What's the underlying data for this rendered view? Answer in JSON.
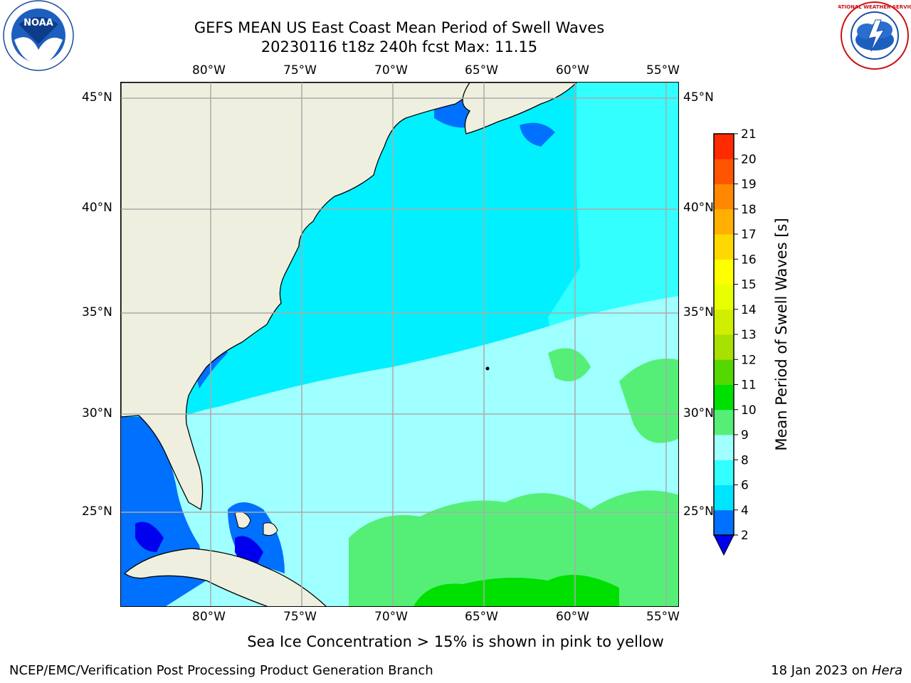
{
  "header": {
    "title_line1": "GEFS MEAN US East Coast Mean Period of Swell Waves",
    "title_line2": "20230116 t18z 240h fcst   Max: 11.15"
  },
  "map": {
    "lon_labels": [
      "80°W",
      "75°W",
      "70°W",
      "65°W",
      "60°W",
      "55°W"
    ],
    "lat_labels": [
      "45°N",
      "40°N",
      "35°N",
      "30°N",
      "25°N"
    ]
  },
  "colorbar": {
    "label": "Mean Period of Swell Waves [s]",
    "ticks": [
      "2",
      "4",
      "6",
      "8",
      "9",
      "10",
      "11",
      "12",
      "13",
      "14",
      "15",
      "16",
      "17",
      "18",
      "19",
      "20",
      "21"
    ],
    "colors": [
      "#0070ff",
      "#00e5ff",
      "#33ffff",
      "#a0ffff",
      "#55ef77",
      "#00e000",
      "#55d800",
      "#a8e000",
      "#d0ee00",
      "#e8ff00",
      "#ffff00",
      "#ffd800",
      "#ffb000",
      "#ff8800",
      "#ff5500",
      "#ff2a00",
      "#ff0000"
    ],
    "under_color": "#0000ee"
  },
  "notes": {
    "ice": "Sea Ice Concentration > 15% is shown in pink to yellow"
  },
  "footer": {
    "left": "NCEP/EMC/Verification Post Processing Product Generation Branch",
    "right_date": "18 Jan 2023 on",
    "right_host": "Hera"
  },
  "logos": {
    "noaa_text": "NOAA",
    "nws_text": "NATIONAL WEATHER SERVICE"
  }
}
